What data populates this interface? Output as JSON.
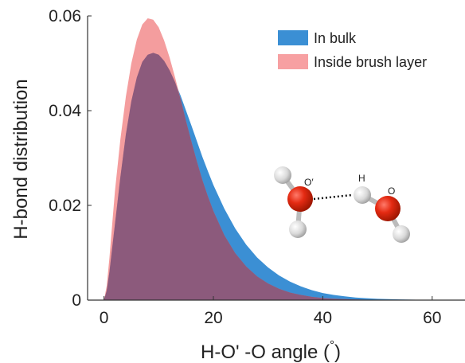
{
  "chart_data": {
    "type": "area",
    "xlabel_prefix": "H-O' -O angle (",
    "xlabel_degree": "°",
    "xlabel_suffix": ")",
    "ylabel": "H-bond distribution",
    "xlim": [
      -3,
      66
    ],
    "ylim": [
      0,
      0.06
    ],
    "xticks": [
      0,
      20,
      40,
      60
    ],
    "yticks": [
      0,
      0.02,
      0.04,
      0.06
    ],
    "ytick_labels": [
      "0",
      "0.02",
      "0.04",
      "0.06"
    ],
    "grid": false,
    "legend_position": "top-right",
    "series": [
      {
        "name": "In bulk",
        "color": "#3b8fd4",
        "x": [
          0,
          0.5,
          1,
          1.5,
          2,
          3,
          4,
          5,
          6,
          7,
          8,
          9,
          10,
          11,
          12,
          13,
          14,
          15,
          16,
          17,
          18,
          19,
          20,
          22,
          24,
          26,
          28,
          30,
          32,
          34,
          36,
          38,
          40,
          42,
          44,
          46,
          48,
          50,
          52,
          54,
          56,
          58,
          60,
          62,
          64,
          66
        ],
        "values": [
          0,
          0.002,
          0.006,
          0.011,
          0.016,
          0.026,
          0.035,
          0.042,
          0.047,
          0.0503,
          0.0518,
          0.0522,
          0.0518,
          0.0505,
          0.0485,
          0.046,
          0.0432,
          0.04,
          0.0368,
          0.0335,
          0.0302,
          0.0272,
          0.0243,
          0.0193,
          0.0151,
          0.0117,
          0.009,
          0.0069,
          0.0052,
          0.0039,
          0.0029,
          0.0021,
          0.0015,
          0.0011,
          0.0008,
          0.00055,
          0.0004,
          0.00028,
          0.0002,
          0.00014,
          0.0001,
          7e-05,
          5e-05,
          3e-05,
          2e-05,
          1e-05
        ]
      },
      {
        "name": "Inside brush layer",
        "color": "#f07c7e",
        "x": [
          0,
          0.5,
          1,
          1.5,
          2,
          3,
          4,
          5,
          6,
          7,
          8,
          9,
          10,
          11,
          12,
          13,
          14,
          15,
          16,
          17,
          18,
          19,
          20,
          22,
          24,
          26,
          28,
          30,
          32,
          34,
          36,
          38,
          40,
          42,
          44,
          46,
          48,
          50,
          52,
          54,
          56,
          58,
          60,
          62,
          64,
          66
        ],
        "values": [
          0,
          0.003,
          0.009,
          0.016,
          0.023,
          0.034,
          0.043,
          0.05,
          0.055,
          0.0582,
          0.0595,
          0.0592,
          0.0576,
          0.0548,
          0.0512,
          0.047,
          0.0425,
          0.0378,
          0.0334,
          0.0292,
          0.0253,
          0.0219,
          0.0188,
          0.0137,
          0.0099,
          0.0071,
          0.005,
          0.0035,
          0.0024,
          0.0016,
          0.0011,
          0.0007,
          0.00045,
          0.0003,
          0.0002,
          0.00013,
          8e-05,
          5e-05,
          3e-05,
          2e-05,
          1e-05,
          0,
          0,
          0,
          0,
          0
        ]
      }
    ],
    "overlap_color": "#8c5a7c",
    "inset": {
      "type": "molecule-diagram",
      "labels": [
        "O′",
        "H",
        "O"
      ]
    }
  }
}
